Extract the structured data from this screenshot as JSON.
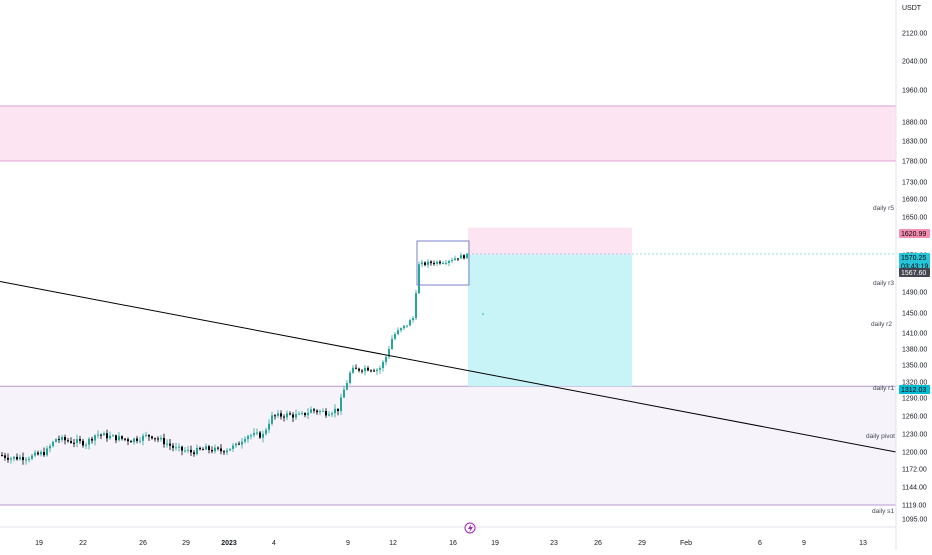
{
  "chart_data": {
    "type": "candlestick",
    "currency": "USDT",
    "y_ticks": [
      "2120.00",
      "2040.00",
      "1960.00",
      "1880.00",
      "1830.00",
      "1780.00",
      "1730.00",
      "1690.00",
      "1650.00",
      "1610.00",
      "1570.00",
      "1530.00",
      "1490.00",
      "1450.00",
      "1410.00",
      "1380.00",
      "1350.00",
      "1320.00",
      "1290.00",
      "1260.00",
      "1230.00",
      "1200.00",
      "1172.00",
      "1144.00",
      "1119.00",
      "1095.00"
    ],
    "x_ticks": [
      "19",
      "22",
      "26",
      "29",
      "2023",
      "4",
      "9",
      "12",
      "16",
      "19",
      "23",
      "26",
      "29",
      "Feb",
      "6",
      "9",
      "13"
    ],
    "price_tags": [
      {
        "value": "1620.99",
        "color": "#f48fb1",
        "text_color": "#000000"
      },
      {
        "value": "1570.25",
        "sub": "03:43:19",
        "color": "#26c6da",
        "text_color": "#000000"
      },
      {
        "value": "1567.60",
        "color": "#434651",
        "text_color": "#ffffff"
      },
      {
        "value": "1312.03",
        "color": "#00bcd4",
        "text_color": "#000000"
      }
    ],
    "pivot_labels": [
      "daily r5",
      "daily r3",
      "daily r2",
      "daily r1",
      "daily pivot",
      "daily s1"
    ],
    "zones": [
      {
        "name": "supply-zone",
        "price_from": 1780,
        "price_to": 1920,
        "color": "#fce4f3"
      },
      {
        "name": "demand-zone",
        "price_from": 1119,
        "price_to": 1312,
        "color": "#f6f3fb"
      }
    ],
    "position": {
      "entry": 1570,
      "stop": 1625,
      "target": 1312
    },
    "trendline": {
      "from_price": 1510,
      "to_price": 1200
    },
    "colors": {
      "up": "#26a69a",
      "down": "#000000",
      "trendline": "#000000"
    }
  }
}
